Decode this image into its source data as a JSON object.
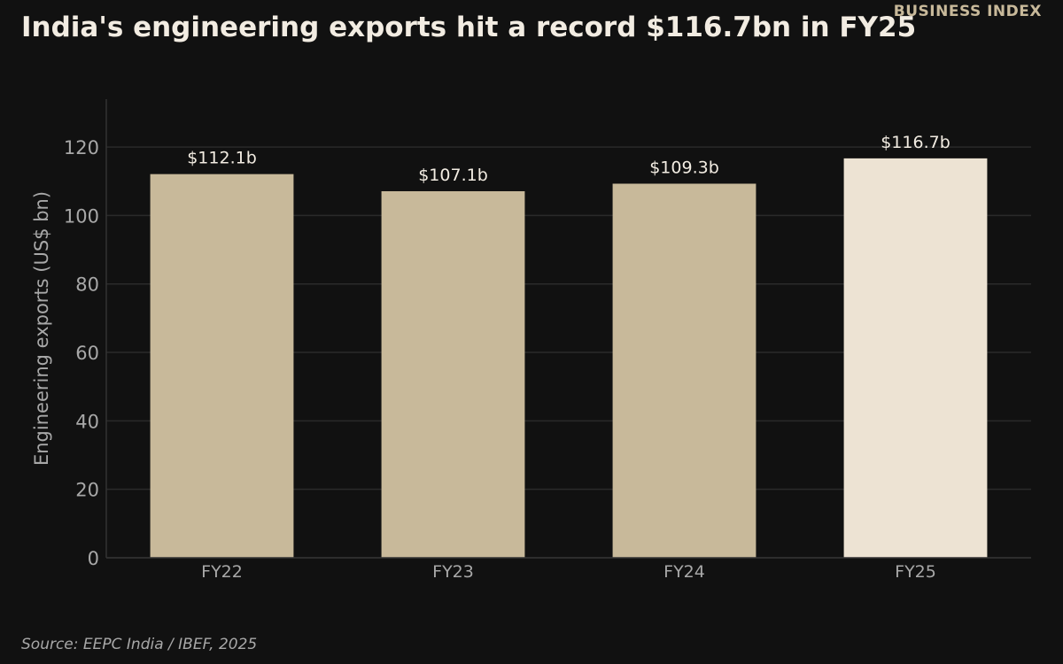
{
  "header": {
    "brand": "BUSINESS INDEX",
    "title": "India's engineering exports hit a record $116.7bn in FY25"
  },
  "footer": {
    "source": "Source: EEPC India / IBEF, 2025"
  },
  "colors": {
    "background": "#111111",
    "bar": "#c8b99a",
    "bar_highlight": "#ede3d3",
    "grid": "#2a2a2a",
    "axis_text": "#a8a8a8",
    "value_label": "#f2ece2"
  },
  "chart_data": {
    "type": "bar",
    "title": "India's engineering exports hit a record $116.7bn in FY25",
    "xlabel": "",
    "ylabel": "Engineering exports (US$ bn)",
    "categories": [
      "FY22",
      "FY23",
      "FY24",
      "FY25"
    ],
    "values": [
      112.1,
      107.1,
      109.3,
      116.7
    ],
    "value_labels": [
      "$112.1b",
      "$107.1b",
      "$109.3b",
      "$116.7b"
    ],
    "highlight_index": 3,
    "ylim": [
      0,
      134
    ],
    "yticks": [
      0,
      20,
      40,
      60,
      80,
      100,
      120
    ],
    "grid": true,
    "legend": "none"
  }
}
